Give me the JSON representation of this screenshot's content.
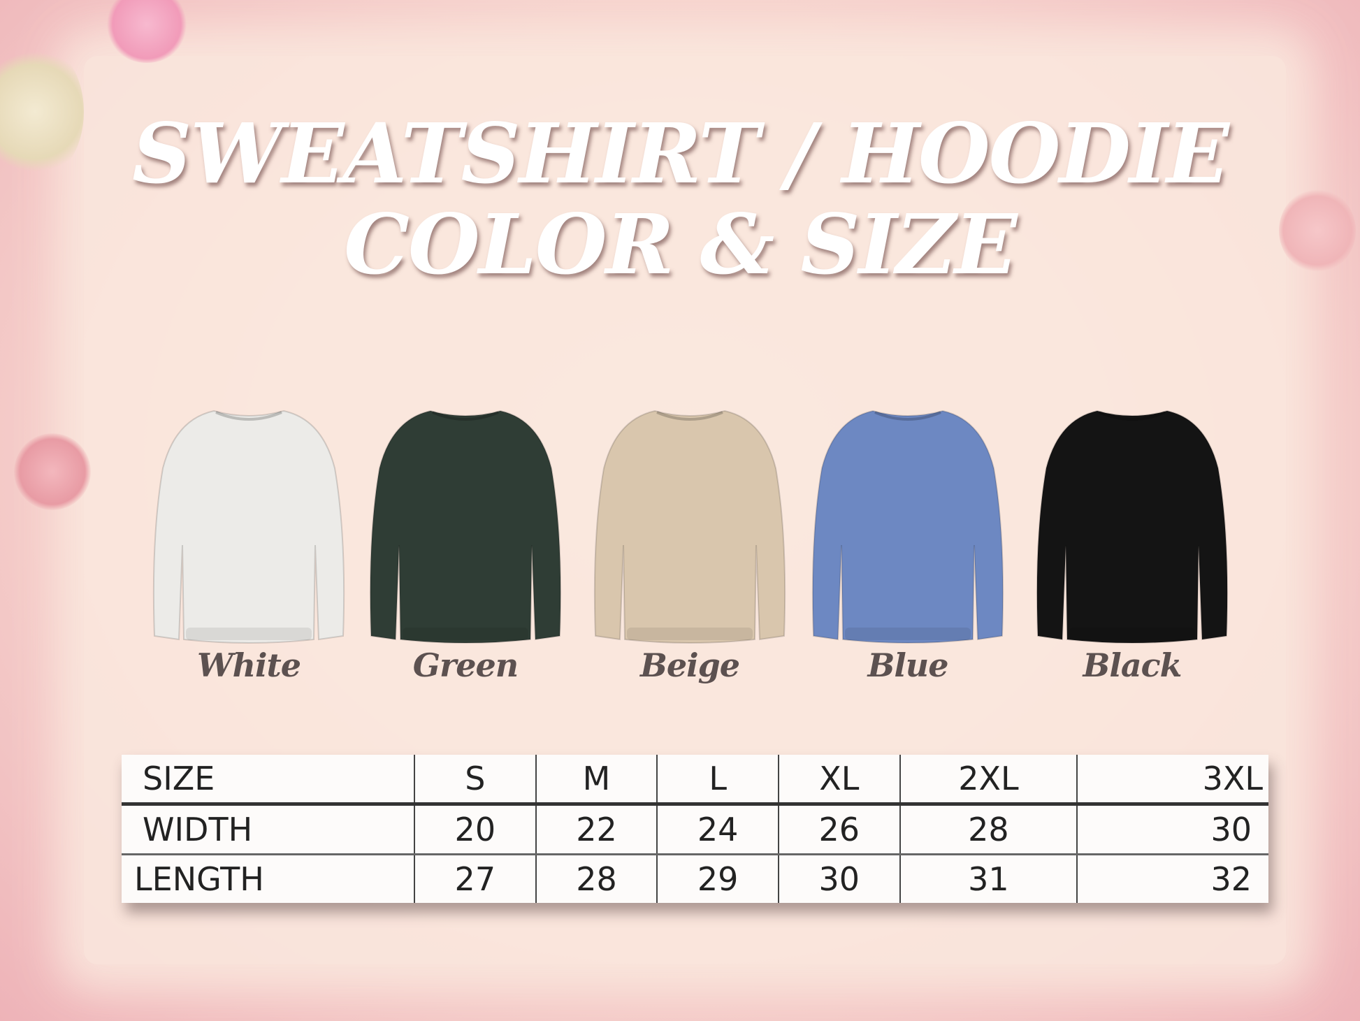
{
  "title": {
    "line1": "SWEATSHIRT / HOODIE",
    "line2": "COLOR & SIZE"
  },
  "colors": [
    {
      "label": "White",
      "hex": "#ecebe8"
    },
    {
      "label": "Green",
      "hex": "#2f3d35"
    },
    {
      "label": "Beige",
      "hex": "#d9c6ad"
    },
    {
      "label": "Blue",
      "hex": "#6d88c2"
    },
    {
      "label": "Black",
      "hex": "#141414"
    }
  ],
  "size_table": {
    "header": [
      "SIZE",
      "S",
      "M",
      "L",
      "XL",
      "2XL",
      "3XL"
    ],
    "rows": [
      [
        "WIDTH",
        "20",
        "22",
        "24",
        "26",
        "28",
        "30"
      ],
      [
        "LENGTH",
        "27",
        "28",
        "29",
        "30",
        "31",
        "32"
      ]
    ]
  }
}
